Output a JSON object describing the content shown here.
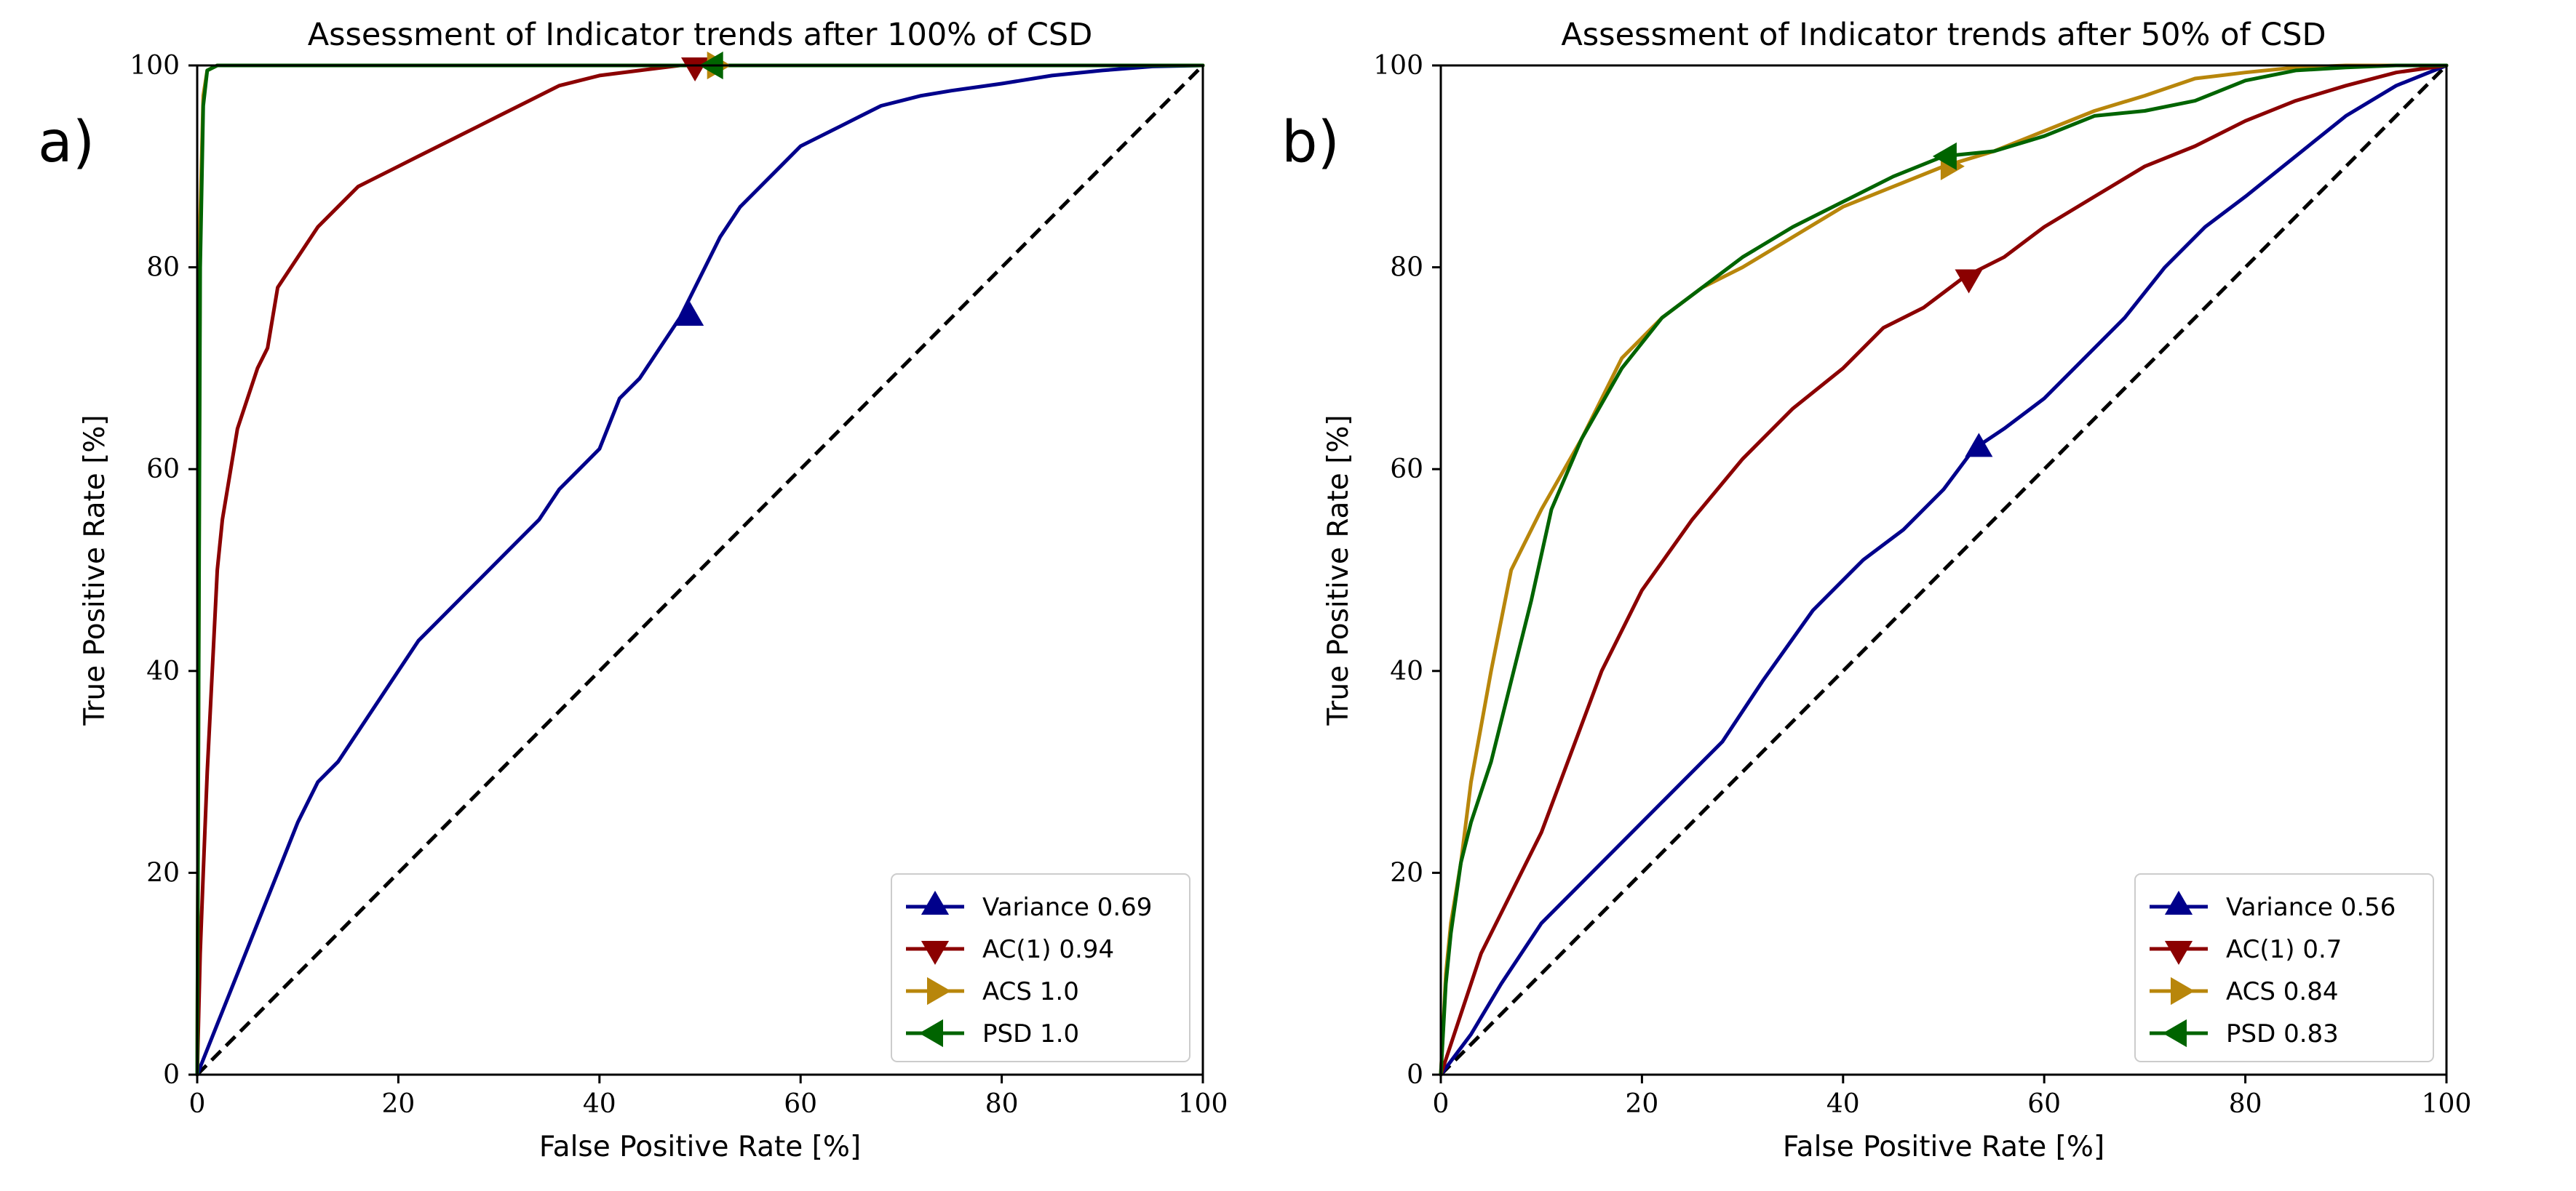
{
  "chart_data": [
    {
      "type": "line",
      "panel_label": "a)",
      "title": "Assessment of Indicator trends after 100% of CSD",
      "xlabel": "False Positive Rate [%]",
      "ylabel": "True Positive Rate [%]",
      "xlim": [
        0,
        100
      ],
      "ylim": [
        0,
        100
      ],
      "xticks": [
        "0",
        "20",
        "40",
        "60",
        "80",
        "100"
      ],
      "yticks": [
        "0",
        "20",
        "40",
        "60",
        "80",
        "100"
      ],
      "grid": false,
      "legend_position": "lower-right",
      "diagonal": "dashed black reference line from (0,0) to (100,100)",
      "series": [
        {
          "name": "Variance 0.69",
          "color": "#00008b",
          "marker": "triangle-up",
          "marker_point": [
            49,
            75
          ],
          "x": [
            0,
            2,
            4,
            6,
            8,
            10,
            12,
            14,
            16,
            18,
            20,
            22,
            24,
            26,
            28,
            30,
            32,
            34,
            36,
            38,
            40,
            42,
            44,
            46,
            48,
            50,
            52,
            54,
            56,
            58,
            60,
            62,
            64,
            66,
            68,
            70,
            72,
            75,
            80,
            85,
            90,
            95,
            100
          ],
          "y": [
            0,
            5,
            10,
            15,
            20,
            25,
            29,
            31,
            34,
            37,
            40,
            43,
            45,
            47,
            49,
            51,
            53,
            55,
            58,
            60,
            62,
            67,
            69,
            72,
            75,
            79,
            83,
            86,
            88,
            90,
            92,
            93,
            94,
            95,
            96,
            96.5,
            97,
            97.5,
            98.2,
            99,
            99.5,
            99.9,
            100
          ]
        },
        {
          "name": "AC(1) 0.94",
          "color": "#8b0000",
          "marker": "triangle-down",
          "marker_point": [
            49.5,
            100
          ],
          "x": [
            0,
            0.3,
            0.6,
            1,
            1.5,
            2,
            2.5,
            3,
            4,
            5,
            6,
            7,
            8,
            10,
            12,
            14,
            16,
            18,
            20,
            22,
            25,
            28,
            30,
            33,
            36,
            40,
            44,
            48,
            52,
            56,
            60,
            100
          ],
          "y": [
            0,
            12,
            20,
            30,
            40,
            50,
            55,
            58,
            64,
            67,
            70,
            72,
            78,
            81,
            84,
            86,
            88,
            89,
            90,
            91,
            92.5,
            94,
            95,
            96.5,
            98,
            99,
            99.5,
            100,
            100,
            100,
            100,
            100
          ]
        },
        {
          "name": "ACS 1.0",
          "color": "#b8860b",
          "marker": "triangle-right",
          "marker_point": [
            51.5,
            100
          ],
          "x": [
            0,
            0.3,
            0.6,
            1,
            2,
            5,
            100
          ],
          "y": [
            0,
            85,
            97,
            99.5,
            100,
            100,
            100
          ]
        },
        {
          "name": "PSD 1.0",
          "color": "#006400",
          "marker": "triangle-left",
          "marker_point": [
            51.5,
            100
          ],
          "x": [
            0,
            0.3,
            0.6,
            1,
            2,
            5,
            100
          ],
          "y": [
            0,
            80,
            96,
            99.5,
            100,
            100,
            100
          ]
        }
      ]
    },
    {
      "type": "line",
      "panel_label": "b)",
      "title": "Assessment of Indicator trends after 50% of CSD",
      "xlabel": "False Positive Rate [%]",
      "ylabel": "True Positive Rate [%]",
      "xlim": [
        0,
        100
      ],
      "ylim": [
        0,
        100
      ],
      "xticks": [
        "0",
        "20",
        "40",
        "60",
        "80",
        "100"
      ],
      "yticks": [
        "0",
        "20",
        "40",
        "60",
        "80",
        "100"
      ],
      "grid": false,
      "legend_position": "lower-right",
      "diagonal": "dashed black reference line from (0,0) to (100,100)",
      "series": [
        {
          "name": "Variance 0.56",
          "color": "#00008b",
          "marker": "triangle-up",
          "marker_point": [
            53.5,
            62
          ],
          "x": [
            0,
            3,
            6,
            10,
            15,
            20,
            25,
            28,
            32,
            37,
            42,
            46,
            50,
            53,
            56,
            60,
            64,
            68,
            72,
            76,
            80,
            85,
            90,
            95,
            100
          ],
          "y": [
            0,
            4,
            9,
            15,
            20,
            25,
            30,
            33,
            39,
            46,
            51,
            54,
            58,
            62,
            64,
            67,
            71,
            75,
            80,
            84,
            87,
            91,
            95,
            98,
            100
          ]
        },
        {
          "name": "AC(1) 0.7",
          "color": "#8b0000",
          "marker": "triangle-down",
          "marker_point": [
            52.5,
            79
          ],
          "x": [
            0,
            1,
            2,
            4,
            7,
            10,
            13,
            16,
            20,
            25,
            30,
            35,
            40,
            44,
            48,
            52,
            56,
            60,
            65,
            70,
            75,
            80,
            85,
            90,
            95,
            100
          ],
          "y": [
            0,
            3,
            6,
            12,
            18,
            24,
            32,
            40,
            48,
            55,
            61,
            66,
            70,
            74,
            76,
            79,
            81,
            84,
            87,
            90,
            92,
            94.5,
            96.5,
            98,
            99.3,
            100
          ]
        },
        {
          "name": "ACS 0.84",
          "color": "#b8860b",
          "marker": "triangle-right",
          "marker_point": [
            50.5,
            90
          ],
          "x": [
            0,
            0.5,
            1,
            2,
            3,
            5,
            7,
            10,
            14,
            18,
            22,
            26,
            30,
            35,
            40,
            45,
            50,
            55,
            60,
            65,
            70,
            75,
            80,
            85,
            90,
            95,
            100
          ],
          "y": [
            0,
            10,
            15,
            21,
            29,
            40,
            50,
            56,
            63,
            71,
            75,
            78,
            80,
            83,
            86,
            88,
            90,
            91.5,
            93.5,
            95.5,
            97,
            98.7,
            99.3,
            99.8,
            100,
            100,
            100
          ]
        },
        {
          "name": "PSD 0.83",
          "color": "#006400",
          "marker": "triangle-left",
          "marker_point": [
            50.5,
            91
          ],
          "x": [
            0,
            0.5,
            1,
            2,
            3,
            5,
            7,
            9,
            11,
            14,
            18,
            22,
            26,
            30,
            35,
            40,
            45,
            50,
            55,
            60,
            65,
            70,
            75,
            80,
            85,
            90,
            95,
            100
          ],
          "y": [
            0,
            9,
            14,
            21,
            25,
            31,
            39,
            47,
            56,
            63,
            70,
            75,
            78,
            81,
            84,
            86.5,
            89,
            91,
            91.5,
            93,
            95,
            95.5,
            96.5,
            98.5,
            99.5,
            99.8,
            100,
            100
          ]
        }
      ]
    }
  ]
}
